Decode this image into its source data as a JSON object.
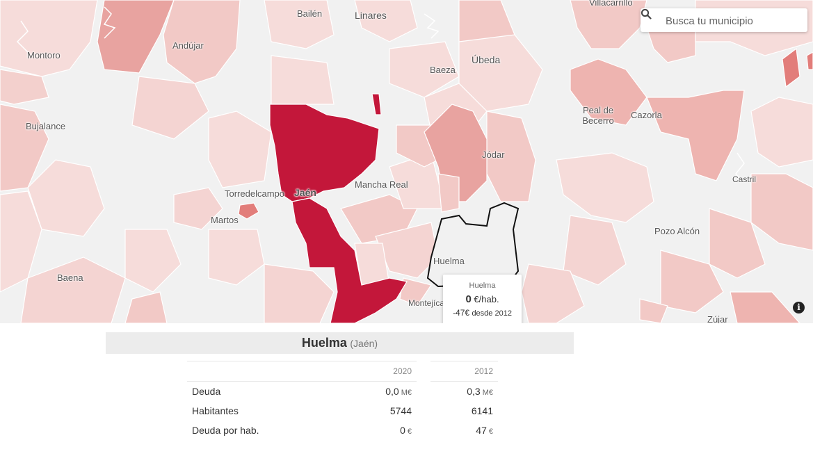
{
  "search": {
    "placeholder": "Busca tu municipio",
    "icon": "search-icon"
  },
  "colors": {
    "high": "#c3173a",
    "mid": "#e8a3a0",
    "light": "#f2c9c6",
    "pale": "#f6dcda",
    "none": "#f1f1f1",
    "selected_border": "#111111"
  },
  "map": {
    "towns": [
      {
        "name": "Villacarrillo"
      },
      {
        "name": "Bailén"
      },
      {
        "name": "Linares"
      },
      {
        "name": "Montoro"
      },
      {
        "name": "Andújar"
      },
      {
        "name": "Úbeda"
      },
      {
        "name": "Baeza"
      },
      {
        "name": "Bujalance"
      },
      {
        "name": "Peal de Becerro"
      },
      {
        "name": "Cazorla"
      },
      {
        "name": "Jódar"
      },
      {
        "name": "Mancha Real"
      },
      {
        "name": "Torredelcampo"
      },
      {
        "name": "Jaén"
      },
      {
        "name": "Castril"
      },
      {
        "name": "Martos"
      },
      {
        "name": "Pozo Alcón"
      },
      {
        "name": "Huelma"
      },
      {
        "name": "Baena"
      },
      {
        "name": "Montejícar"
      },
      {
        "name": "Zújar"
      }
    ],
    "selected": "Huelma"
  },
  "tooltip": {
    "name": "Huelma",
    "value": "0",
    "value_unit": "€/hab.",
    "change": "-47€",
    "change_suffix": "desde 2012"
  },
  "panel": {
    "municipality": "Huelma",
    "province": "(Jaén)",
    "columns": [
      "2020",
      "2012"
    ],
    "rows": [
      {
        "label": "Deuda",
        "v2020": "0,0",
        "v2012": "0,3",
        "unit": "M€"
      },
      {
        "label": "Habitantes",
        "v2020": "5744",
        "v2012": "6141",
        "unit": ""
      },
      {
        "label": "Deuda por hab.",
        "v2020": "0",
        "v2012": "47",
        "unit": "€"
      }
    ]
  }
}
